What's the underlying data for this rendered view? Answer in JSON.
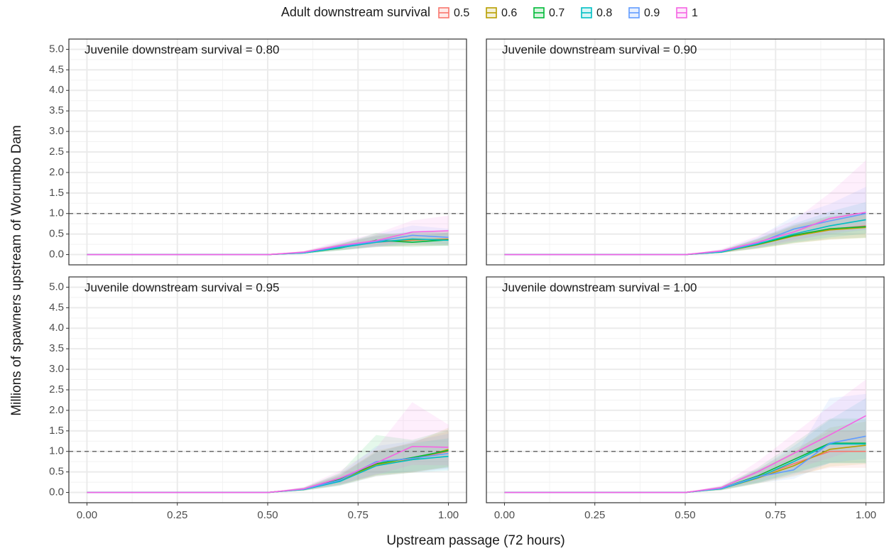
{
  "legend": {
    "title": "Adult downstream survival",
    "entries": [
      {
        "name": "0.5",
        "color": "#F8766D"
      },
      {
        "name": "0.6",
        "color": "#B79F00"
      },
      {
        "name": "0.7",
        "color": "#00BA38"
      },
      {
        "name": "0.8",
        "color": "#00BFC4"
      },
      {
        "name": "0.9",
        "color": "#619CFF"
      },
      {
        "name": "1",
        "color": "#F564E3"
      }
    ]
  },
  "x_label": "Upstream passage (72 hours)",
  "y_label": "Millions of spawners upstream of Worumbo Dam",
  "xlim": [
    -0.05,
    1.05
  ],
  "ylim": [
    -0.25,
    5.25
  ],
  "xticks": [
    {
      "value": 0,
      "label": "0.00"
    },
    {
      "value": 0.25,
      "label": "0.25"
    },
    {
      "value": 0.5,
      "label": "0.50"
    },
    {
      "value": 0.75,
      "label": "0.75"
    },
    {
      "value": 1,
      "label": "1.00"
    }
  ],
  "yticks": [
    {
      "value": 0,
      "label": "0.0"
    },
    {
      "value": 0.5,
      "label": "0.5"
    },
    {
      "value": 1,
      "label": "1.0"
    },
    {
      "value": 1.5,
      "label": "1.5"
    },
    {
      "value": 2,
      "label": "2.0"
    },
    {
      "value": 2.5,
      "label": "2.5"
    },
    {
      "value": 3,
      "label": "3.0"
    },
    {
      "value": 3.5,
      "label": "3.5"
    },
    {
      "value": 4,
      "label": "4.0"
    },
    {
      "value": 4.5,
      "label": "4.5"
    },
    {
      "value": 5,
      "label": "5.0"
    }
  ],
  "reference_line": 1,
  "chart_data": [
    {
      "type": "line",
      "title": "Juvenile downstream survival = 0.80",
      "x": [
        0,
        0.1,
        0.2,
        0.3,
        0.4,
        0.5,
        0.6,
        0.7,
        0.8,
        0.9,
        1
      ],
      "series": [
        {
          "values": [
            0,
            0,
            0,
            0,
            0,
            0,
            0.05,
            0.18,
            0.3,
            0.35,
            0.38
          ],
          "lower": [
            0,
            0,
            0,
            0,
            0,
            0,
            0.03,
            0.11,
            0.18,
            0.21,
            0.23
          ],
          "upper": [
            0,
            0,
            0,
            0,
            0,
            0,
            0.08,
            0.27,
            0.45,
            0.53,
            0.57
          ]
        },
        {
          "values": [
            0,
            0,
            0,
            0,
            0,
            0,
            0.05,
            0.17,
            0.32,
            0.36,
            0.37
          ],
          "lower": [
            0,
            0,
            0,
            0,
            0,
            0,
            0.03,
            0.1,
            0.19,
            0.22,
            0.22
          ],
          "upper": [
            0,
            0,
            0,
            0,
            0,
            0,
            0.08,
            0.26,
            0.48,
            0.54,
            0.56
          ]
        },
        {
          "values": [
            0,
            0,
            0,
            0,
            0,
            0,
            0.04,
            0.16,
            0.35,
            0.3,
            0.36
          ],
          "lower": [
            0,
            0,
            0,
            0,
            0,
            0,
            0.02,
            0.1,
            0.21,
            0.18,
            0.22
          ],
          "upper": [
            0,
            0,
            0,
            0,
            0,
            0,
            0.06,
            0.24,
            0.53,
            0.45,
            0.54
          ]
        },
        {
          "values": [
            0,
            0,
            0,
            0,
            0,
            0,
            0.04,
            0.17,
            0.3,
            0.38,
            0.35
          ],
          "lower": [
            0,
            0,
            0,
            0,
            0,
            0,
            0.02,
            0.1,
            0.18,
            0.23,
            0.21
          ],
          "upper": [
            0,
            0,
            0,
            0,
            0,
            0,
            0.06,
            0.26,
            0.45,
            0.57,
            0.53
          ]
        },
        {
          "values": [
            0,
            0,
            0,
            0,
            0,
            0,
            0.05,
            0.2,
            0.32,
            0.47,
            0.42
          ],
          "lower": [
            0,
            0,
            0,
            0,
            0,
            0,
            0.03,
            0.12,
            0.19,
            0.28,
            0.25
          ],
          "upper": [
            0,
            0,
            0,
            0,
            0,
            0,
            0.08,
            0.3,
            0.48,
            0.71,
            0.63
          ]
        },
        {
          "values": [
            0,
            0,
            0,
            0,
            0,
            0,
            0.06,
            0.22,
            0.34,
            0.55,
            0.58
          ],
          "lower": [
            0,
            0,
            0,
            0,
            0,
            0,
            0.04,
            0.13,
            0.2,
            0.33,
            0.35
          ],
          "upper": [
            0,
            0,
            0,
            0,
            0,
            0,
            0.09,
            0.33,
            0.51,
            0.83,
            0.95
          ]
        }
      ]
    },
    {
      "type": "line",
      "title": "Juvenile downstream survival = 0.90",
      "x": [
        0,
        0.1,
        0.2,
        0.3,
        0.4,
        0.5,
        0.6,
        0.7,
        0.8,
        0.9,
        1
      ],
      "series": [
        {
          "values": [
            0,
            0,
            0,
            0,
            0,
            0,
            0.07,
            0.25,
            0.48,
            0.62,
            0.7
          ],
          "lower": [
            0,
            0,
            0,
            0,
            0,
            0,
            0.04,
            0.15,
            0.29,
            0.37,
            0.42
          ],
          "upper": [
            0,
            0,
            0,
            0,
            0,
            0,
            0.11,
            0.38,
            0.72,
            0.93,
            1.05
          ]
        },
        {
          "values": [
            0,
            0,
            0,
            0,
            0,
            0,
            0.06,
            0.24,
            0.45,
            0.6,
            0.66
          ],
          "lower": [
            0,
            0,
            0,
            0,
            0,
            0,
            0.04,
            0.14,
            0.27,
            0.36,
            0.4
          ],
          "upper": [
            0,
            0,
            0,
            0,
            0,
            0,
            0.09,
            0.36,
            0.68,
            0.9,
            0.99
          ]
        },
        {
          "values": [
            0,
            0,
            0,
            0,
            0,
            0,
            0.07,
            0.25,
            0.47,
            0.63,
            0.68
          ],
          "lower": [
            0,
            0,
            0,
            0,
            0,
            0,
            0.04,
            0.15,
            0.28,
            0.38,
            0.41
          ],
          "upper": [
            0,
            0,
            0,
            0,
            0,
            0,
            0.11,
            0.38,
            0.71,
            0.95,
            1.02
          ]
        },
        {
          "values": [
            0,
            0,
            0,
            0,
            0,
            0,
            0.06,
            0.26,
            0.5,
            0.7,
            0.85
          ],
          "lower": [
            0,
            0,
            0,
            0,
            0,
            0,
            0.04,
            0.16,
            0.3,
            0.42,
            0.51
          ],
          "upper": [
            0,
            0,
            0,
            0,
            0,
            0,
            0.09,
            0.39,
            0.75,
            1.05,
            1.28
          ]
        },
        {
          "values": [
            0,
            0,
            0,
            0,
            0,
            0,
            0.08,
            0.28,
            0.62,
            0.82,
            1.0
          ],
          "lower": [
            0,
            0,
            0,
            0,
            0,
            0,
            0.05,
            0.17,
            0.37,
            0.49,
            0.6
          ],
          "upper": [
            0,
            0,
            0,
            0,
            0,
            0,
            0.12,
            0.42,
            0.93,
            1.23,
            1.65
          ]
        },
        {
          "values": [
            0,
            0,
            0,
            0,
            0,
            0,
            0.09,
            0.3,
            0.55,
            0.88,
            1.03
          ],
          "lower": [
            0,
            0,
            0,
            0,
            0,
            0,
            0.05,
            0.18,
            0.33,
            0.53,
            0.62
          ],
          "upper": [
            0,
            0,
            0,
            0,
            0,
            0,
            0.14,
            0.45,
            0.83,
            1.5,
            2.3
          ]
        }
      ]
    },
    {
      "type": "line",
      "title": "Juvenile downstream survival = 0.95",
      "x": [
        0,
        0.1,
        0.2,
        0.3,
        0.4,
        0.5,
        0.6,
        0.7,
        0.8,
        0.9,
        1
      ],
      "series": [
        {
          "values": [
            0,
            0,
            0,
            0,
            0,
            0,
            0.08,
            0.3,
            0.65,
            0.82,
            1.0
          ],
          "lower": [
            0,
            0,
            0,
            0,
            0,
            0,
            0.05,
            0.18,
            0.39,
            0.49,
            0.6
          ],
          "upper": [
            0,
            0,
            0,
            0,
            0,
            0,
            0.12,
            0.45,
            0.98,
            1.23,
            1.5
          ]
        },
        {
          "values": [
            0,
            0,
            0,
            0,
            0,
            0,
            0.07,
            0.28,
            0.68,
            0.8,
            1.05
          ],
          "lower": [
            0,
            0,
            0,
            0,
            0,
            0,
            0.04,
            0.17,
            0.41,
            0.48,
            0.63
          ],
          "upper": [
            0,
            0,
            0,
            0,
            0,
            0,
            0.11,
            0.42,
            1.02,
            1.2,
            1.58
          ]
        },
        {
          "values": [
            0,
            0,
            0,
            0,
            0,
            0,
            0.08,
            0.32,
            0.7,
            0.85,
            1.02
          ],
          "lower": [
            0,
            0,
            0,
            0,
            0,
            0,
            0.05,
            0.19,
            0.42,
            0.51,
            0.61
          ],
          "upper": [
            0,
            0,
            0,
            0,
            0,
            0,
            0.12,
            0.48,
            1.4,
            1.28,
            1.53
          ]
        },
        {
          "values": [
            0,
            0,
            0,
            0,
            0,
            0,
            0.07,
            0.27,
            0.65,
            0.8,
            0.88
          ],
          "lower": [
            0,
            0,
            0,
            0,
            0,
            0,
            0.04,
            0.16,
            0.39,
            0.48,
            0.53
          ],
          "upper": [
            0,
            0,
            0,
            0,
            0,
            0,
            0.11,
            0.41,
            0.98,
            1.2,
            1.32
          ]
        },
        {
          "values": [
            0,
            0,
            0,
            0,
            0,
            0,
            0.08,
            0.3,
            0.75,
            0.83,
            0.95
          ],
          "lower": [
            0,
            0,
            0,
            0,
            0,
            0,
            0.05,
            0.18,
            0.45,
            0.5,
            0.57
          ],
          "upper": [
            0,
            0,
            0,
            0,
            0,
            0,
            0.12,
            0.45,
            1.13,
            1.25,
            1.43
          ]
        },
        {
          "values": [
            0,
            0,
            0,
            0,
            0,
            0,
            0.09,
            0.35,
            0.72,
            1.12,
            1.1
          ],
          "lower": [
            0,
            0,
            0,
            0,
            0,
            0,
            0.05,
            0.21,
            0.43,
            0.67,
            0.66
          ],
          "upper": [
            0,
            0,
            0,
            0,
            0,
            0,
            0.14,
            0.53,
            1.08,
            2.2,
            1.65
          ]
        }
      ]
    },
    {
      "type": "line",
      "title": "Juvenile downstream survival = 1.00",
      "x": [
        0,
        0.1,
        0.2,
        0.3,
        0.4,
        0.5,
        0.6,
        0.7,
        0.8,
        0.9,
        1
      ],
      "series": [
        {
          "values": [
            0,
            0,
            0,
            0,
            0,
            0,
            0.1,
            0.38,
            0.7,
            1.0,
            1.0
          ],
          "lower": [
            0,
            0,
            0,
            0,
            0,
            0,
            0.06,
            0.23,
            0.42,
            0.6,
            0.6
          ],
          "upper": [
            0,
            0,
            0,
            0,
            0,
            0,
            0.15,
            0.57,
            1.05,
            1.5,
            1.5
          ]
        },
        {
          "values": [
            0,
            0,
            0,
            0,
            0,
            0,
            0.09,
            0.35,
            0.65,
            1.05,
            1.15
          ],
          "lower": [
            0,
            0,
            0,
            0,
            0,
            0,
            0.05,
            0.21,
            0.39,
            0.63,
            0.69
          ],
          "upper": [
            0,
            0,
            0,
            0,
            0,
            0,
            0.14,
            0.53,
            0.98,
            1.58,
            1.73
          ]
        },
        {
          "values": [
            0,
            0,
            0,
            0,
            0,
            0,
            0.1,
            0.4,
            0.8,
            1.2,
            1.2
          ],
          "lower": [
            0,
            0,
            0,
            0,
            0,
            0,
            0.06,
            0.24,
            0.48,
            0.72,
            0.72
          ],
          "upper": [
            0,
            0,
            0,
            0,
            0,
            0,
            0.15,
            0.6,
            1.2,
            1.8,
            1.8
          ]
        },
        {
          "values": [
            0,
            0,
            0,
            0,
            0,
            0,
            0.09,
            0.36,
            0.75,
            1.18,
            1.18
          ],
          "lower": [
            0,
            0,
            0,
            0,
            0,
            0,
            0.05,
            0.22,
            0.45,
            0.71,
            0.71
          ],
          "upper": [
            0,
            0,
            0,
            0,
            0,
            0,
            0.14,
            0.54,
            1.13,
            1.77,
            2.3
          ]
        },
        {
          "values": [
            0,
            0,
            0,
            0,
            0,
            0,
            0.1,
            0.38,
            0.55,
            1.2,
            1.37
          ],
          "lower": [
            0,
            0,
            0,
            0,
            0,
            0,
            0.06,
            0.23,
            0.33,
            0.72,
            0.82
          ],
          "upper": [
            0,
            0,
            0,
            0,
            0,
            0,
            0.15,
            0.57,
            0.83,
            2.3,
            2.4
          ]
        },
        {
          "values": [
            0,
            0,
            0,
            0,
            0,
            0,
            0.12,
            0.5,
            0.95,
            1.4,
            1.87
          ],
          "lower": [
            0,
            0,
            0,
            0,
            0,
            0,
            0.07,
            0.3,
            0.57,
            0.84,
            1.12
          ],
          "upper": [
            0,
            0,
            0,
            0,
            0,
            0,
            0.18,
            0.75,
            1.43,
            2.1,
            2.75
          ]
        }
      ]
    }
  ]
}
